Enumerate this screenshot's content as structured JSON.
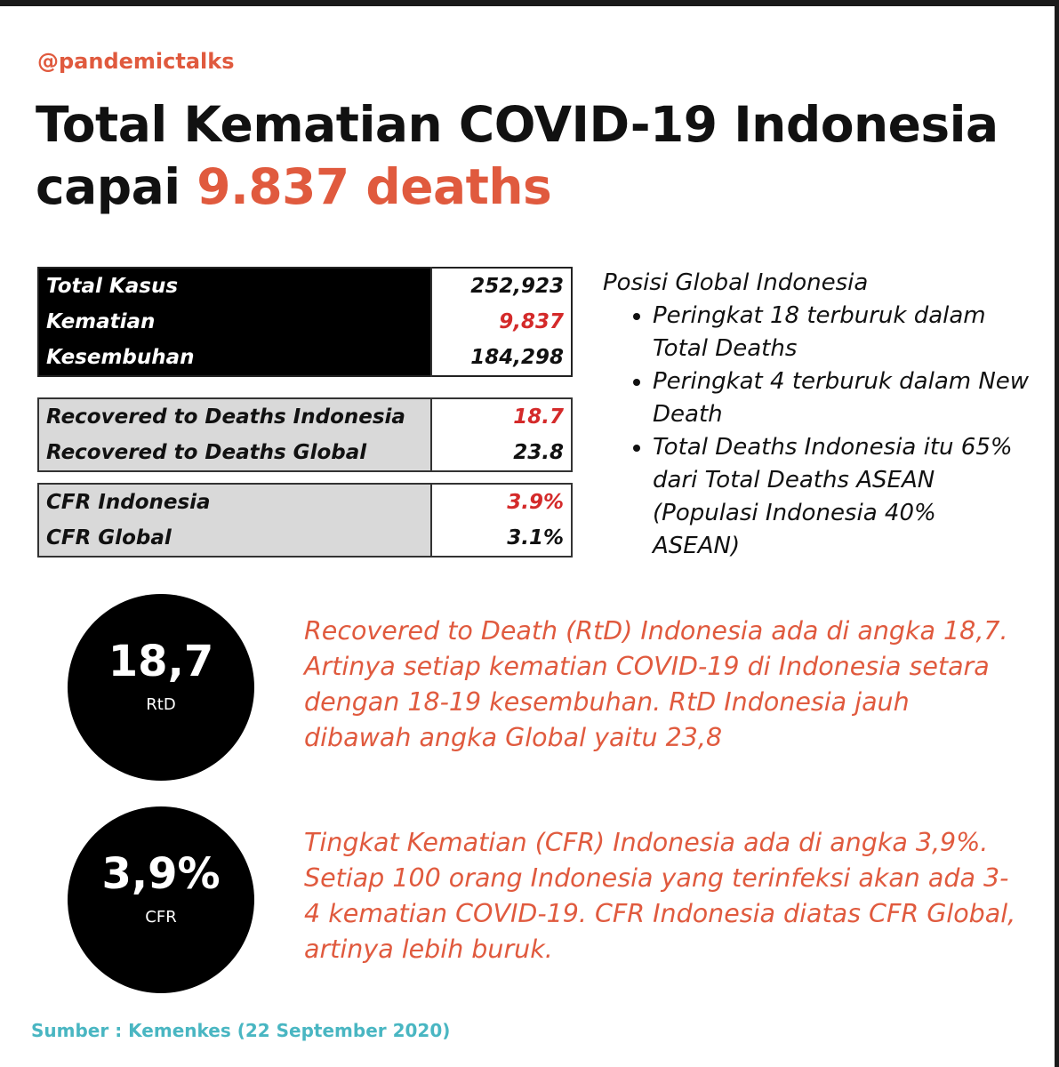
{
  "header": {
    "handle": "@pandemictalks",
    "title_line1": "Total Kematian COVID-19 Indonesia",
    "title_line2_prefix": "capai ",
    "title_highlight": "9.837 deaths"
  },
  "stats_main": [
    {
      "label": "Total Kasus",
      "value": "252,923"
    },
    {
      "label": "Kematian",
      "value": "9,837"
    },
    {
      "label": "Kesembuhan",
      "value": "184,298"
    }
  ],
  "stats_rtd": [
    {
      "label": "Recovered to Deaths Indonesia",
      "value": "18.7"
    },
    {
      "label": "Recovered to Deaths Global",
      "value": "23.8"
    }
  ],
  "stats_cfr": [
    {
      "label": "CFR Indonesia",
      "value": "3.9%"
    },
    {
      "label": "CFR Global",
      "value": "3.1%"
    }
  ],
  "position": {
    "title": "Posisi Global Indonesia",
    "bullets": [
      "Peringkat 18 terburuk dalam Total Deaths",
      "Peringkat 4  terburuk dalam New Death",
      "Total Deaths Indonesia itu 65% dari Total Deaths ASEAN (Populasi Indonesia 40% ASEAN)"
    ]
  },
  "rtd_circle": {
    "value": "18,7",
    "label": "RtD"
  },
  "rtd_text": "Recovered to Death (RtD) Indonesia ada di angka 18,7. Artinya setiap kematian COVID-19 di Indonesia setara dengan 18-19 kesembuhan. RtD Indonesia jauh dibawah angka Global yaitu 23,8",
  "cfr_circle": {
    "value": "3,9%",
    "label": "CFR"
  },
  "cfr_text": "Tingkat Kematian (CFR) Indonesia ada di angka 3,9%. Setiap 100 orang Indonesia yang terinfeksi akan  ada 3-4 kematian COVID-19. CFR Indonesia diatas CFR Global, artinya lebih buruk.",
  "source": "Sumber : Kemenkes (22 September 2020)",
  "colors": {
    "accent": "#e05a3e",
    "value_red": "#d42a2a",
    "source": "#49b6c2"
  }
}
